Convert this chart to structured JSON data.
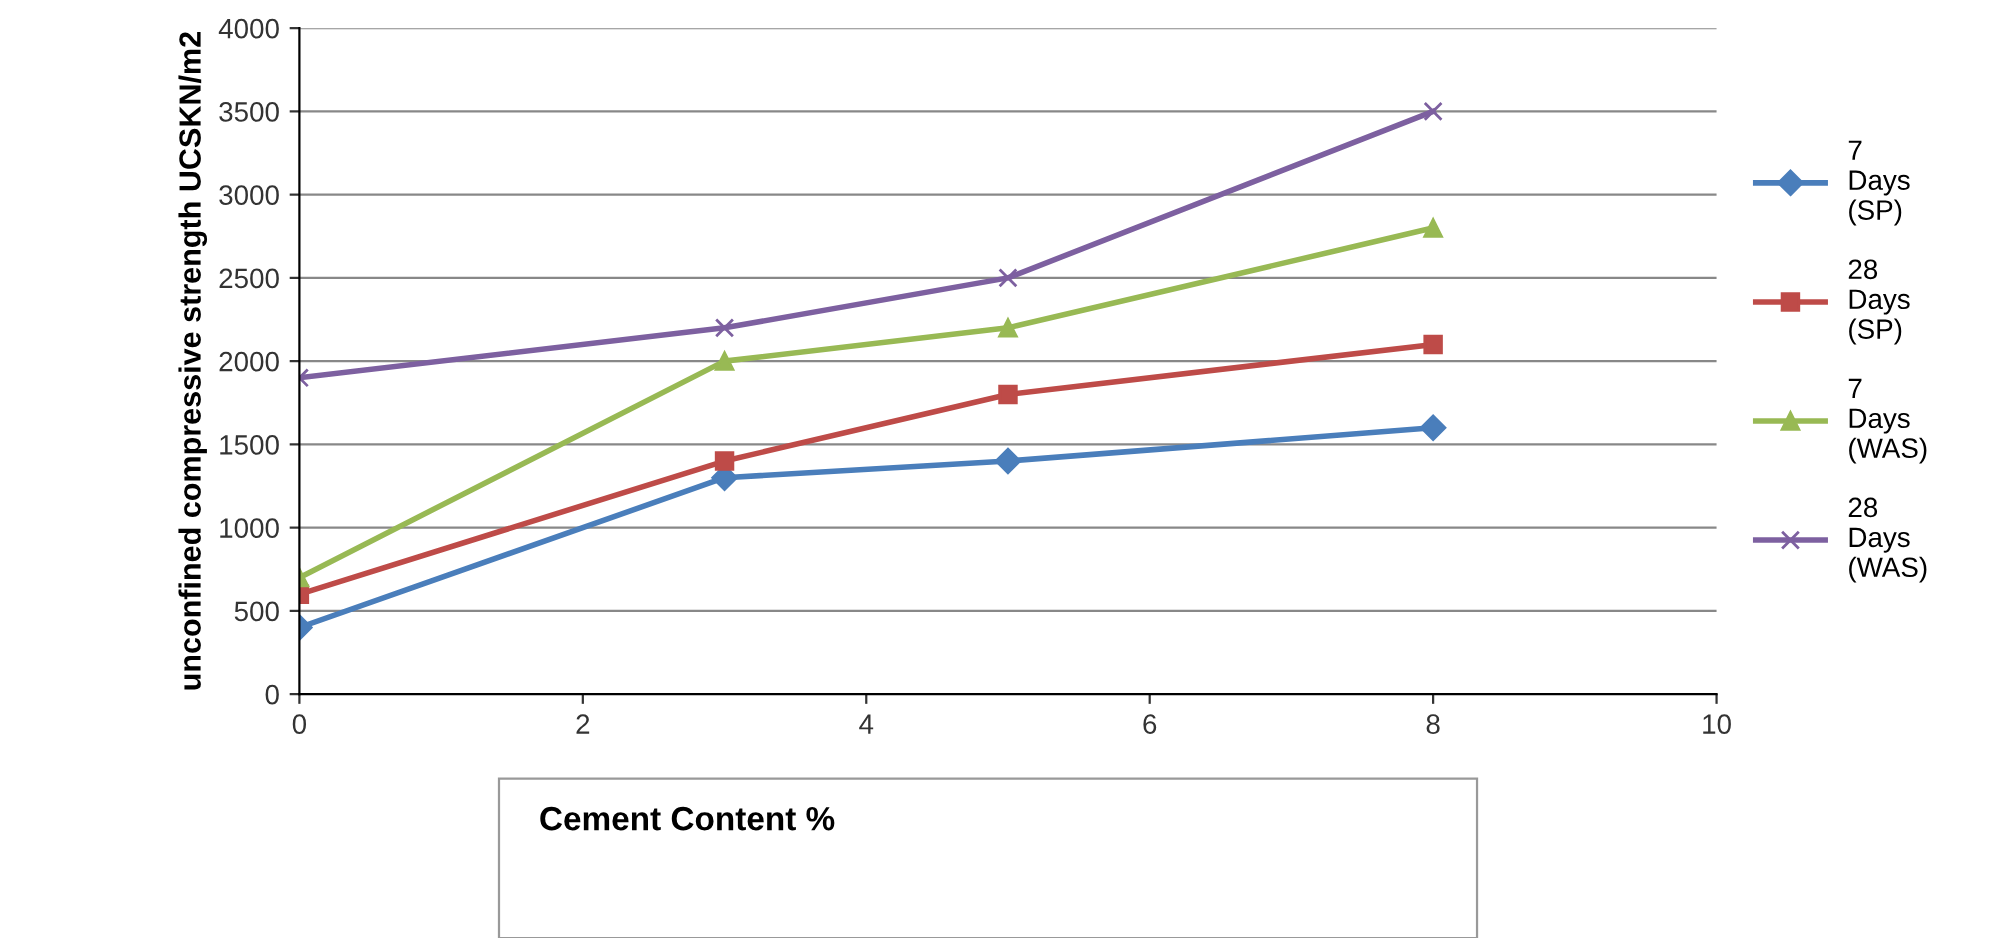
{
  "chart_data": {
    "type": "line",
    "xlabel": "Cement Content %",
    "ylabel": "unconfined compressive strength UCSKN/m2",
    "xlim": [
      0,
      10
    ],
    "xticks": [
      0,
      2,
      4,
      6,
      8,
      10
    ],
    "ylim": [
      0,
      4000
    ],
    "yticks": [
      0,
      500,
      1000,
      1500,
      2000,
      2500,
      3000,
      3500,
      4000
    ],
    "grid": "y",
    "legend": "right",
    "x": [
      0,
      3,
      5,
      8
    ],
    "series": [
      {
        "name": "7 Days (SP)",
        "color": "#4a7ebb",
        "marker": "diamond",
        "values": [
          400,
          1300,
          1400,
          1600
        ]
      },
      {
        "name": "28 Days (SP)",
        "color": "#be4b48",
        "marker": "square",
        "values": [
          600,
          1400,
          1800,
          2100
        ]
      },
      {
        "name": "7 Days (WAS)",
        "color": "#98b954",
        "marker": "triangle",
        "values": [
          700,
          2000,
          2200,
          2800
        ]
      },
      {
        "name": "28 Days (WAS)",
        "color": "#7d60a0",
        "marker": "cross",
        "values": [
          1900,
          2200,
          2500,
          3500
        ]
      }
    ]
  }
}
